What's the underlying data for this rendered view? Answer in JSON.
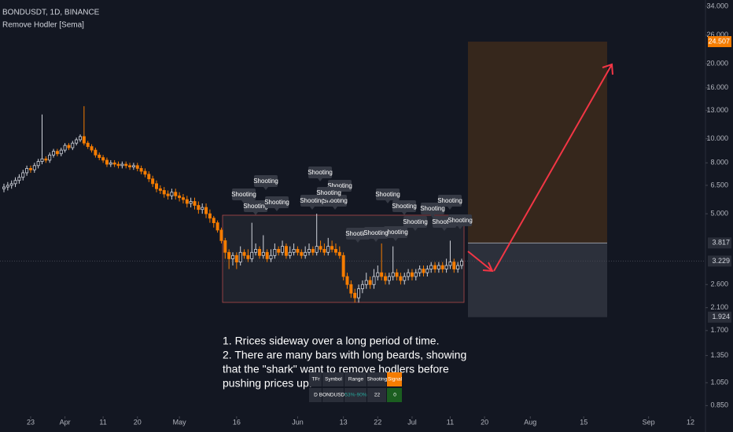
{
  "header": {
    "symbol": "BONDUSDT, 1D, BINANCE",
    "indicator": "Remove Hodler [Sema]"
  },
  "chart_data": {
    "type": "candlestick",
    "log_scale": true,
    "up_color": "#d1d4dc",
    "down_color": "#f57c00",
    "ylim": [
      0.77,
      36
    ],
    "yticks": [
      {
        "value": 34,
        "label": "34.000"
      },
      {
        "value": 26,
        "label": "26.000"
      },
      {
        "value": 20,
        "label": "20.000"
      },
      {
        "value": 16,
        "label": "16.000"
      },
      {
        "value": 13,
        "label": "13.000"
      },
      {
        "value": 10,
        "label": "10.000"
      },
      {
        "value": 8,
        "label": "8.000"
      },
      {
        "value": 6.5,
        "label": "6.500"
      },
      {
        "value": 5,
        "label": "5.000"
      },
      {
        "value": 2.6,
        "label": "2.600"
      },
      {
        "value": 2.1,
        "label": "2.100"
      },
      {
        "value": 1.7,
        "label": "1.700"
      },
      {
        "value": 1.35,
        "label": "1.350"
      },
      {
        "value": 1.05,
        "label": "1.050"
      },
      {
        "value": 0.85,
        "label": "0.850"
      }
    ],
    "xlim": [
      0,
      190
    ],
    "xticks": [
      {
        "value": 7,
        "label": "23"
      },
      {
        "value": 16,
        "label": "Apr"
      },
      {
        "value": 26,
        "label": "11"
      },
      {
        "value": 35,
        "label": "20"
      },
      {
        "value": 46,
        "label": "May"
      },
      {
        "value": 61,
        "label": "16"
      },
      {
        "value": 77,
        "label": "Jun"
      },
      {
        "value": 89,
        "label": "13"
      },
      {
        "value": 98,
        "label": "22"
      },
      {
        "value": 107,
        "label": "Jul"
      },
      {
        "value": 117,
        "label": "11"
      },
      {
        "value": 126,
        "label": "20"
      },
      {
        "value": 138,
        "label": "Aug"
      },
      {
        "value": 152,
        "label": "15"
      },
      {
        "value": 169,
        "label": "Sep"
      },
      {
        "value": 180,
        "label": "12"
      }
    ],
    "open": [
      6.3,
      6.4,
      6.5,
      6.6,
      6.8,
      7.0,
      7.3,
      7.6,
      7.5,
      7.8,
      8.1,
      8.3,
      8.2,
      8.6,
      8.9,
      8.7,
      9.0,
      9.4,
      9.2,
      9.6,
      9.9,
      10.2,
      9.6,
      9.3,
      9.0,
      8.6,
      8.4,
      8.2,
      7.9,
      8.0,
      7.9,
      7.8,
      7.9,
      7.8,
      7.7,
      7.8,
      7.6,
      7.4,
      7.2,
      6.9,
      6.6,
      6.3,
      6.2,
      6.0,
      5.9,
      6.1,
      5.9,
      5.8,
      5.7,
      5.5,
      5.6,
      5.4,
      5.2,
      5.3,
      5.0,
      4.8,
      4.6,
      4.3,
      3.9,
      3.5,
      3.3,
      3.4,
      3.2,
      3.5,
      3.4,
      3.3,
      3.5,
      3.6,
      3.4,
      3.5,
      3.3,
      3.4,
      3.6,
      3.5,
      3.7,
      3.4,
      3.5,
      3.6,
      3.5,
      3.4,
      3.5,
      3.6,
      3.5,
      3.7,
      3.6,
      3.5,
      3.7,
      3.6,
      3.5,
      3.4,
      2.8,
      2.6,
      2.4,
      2.3,
      2.5,
      2.6,
      2.7,
      2.6,
      2.8,
      2.9,
      2.8,
      2.7,
      2.8,
      2.9,
      2.8,
      2.7,
      2.8,
      2.9,
      2.8,
      2.9,
      3.0,
      2.9,
      3.0,
      3.1,
      3.0,
      3.1,
      3.0,
      3.1,
      3.2,
      3.0,
      3.1
    ],
    "high": [
      6.6,
      6.7,
      6.8,
      7.0,
      7.2,
      7.5,
      7.8,
      7.8,
      8.0,
      8.3,
      12.5,
      8.5,
      8.8,
      9.1,
      9.1,
      9.2,
      9.6,
      9.6,
      9.8,
      10.1,
      10.4,
      13.5,
      9.8,
      9.5,
      9.2,
      8.8,
      8.6,
      8.4,
      8.2,
      8.2,
      8.1,
      8.1,
      8.1,
      8.0,
      8.0,
      8.0,
      7.8,
      7.6,
      7.4,
      7.1,
      6.8,
      6.5,
      6.4,
      6.2,
      6.3,
      6.3,
      6.1,
      6.0,
      5.9,
      5.8,
      5.8,
      5.6,
      5.5,
      5.5,
      5.2,
      4.9,
      4.7,
      4.4,
      4.0,
      3.6,
      3.5,
      3.5,
      3.7,
      3.6,
      3.6,
      4.6,
      3.8,
      3.7,
      4.1,
      3.6,
      3.6,
      3.8,
      3.7,
      3.9,
      3.8,
      3.7,
      3.8,
      3.7,
      3.6,
      3.7,
      3.8,
      3.7,
      5.0,
      3.9,
      3.8,
      4.0,
      3.9,
      3.8,
      3.7,
      3.5,
      2.9,
      2.7,
      2.5,
      2.6,
      2.7,
      2.9,
      2.8,
      3.0,
      3.1,
      3.8,
      2.9,
      2.9,
      3.7,
      3.0,
      2.9,
      2.9,
      3.0,
      3.0,
      3.0,
      3.1,
      3.1,
      3.1,
      3.2,
      3.2,
      3.2,
      3.2,
      3.3,
      3.9,
      3.3,
      3.2,
      3.3
    ],
    "low": [
      6.1,
      6.2,
      6.3,
      6.4,
      6.6,
      6.8,
      7.1,
      7.3,
      7.3,
      7.6,
      7.9,
      8.0,
      8.0,
      8.4,
      8.5,
      8.5,
      8.8,
      9.0,
      9.0,
      9.4,
      9.7,
      9.4,
      9.1,
      8.8,
      8.4,
      8.2,
      8.0,
      7.7,
      7.7,
      7.7,
      7.6,
      7.6,
      7.6,
      7.5,
      7.5,
      7.4,
      7.2,
      7.0,
      6.7,
      6.4,
      6.1,
      6.0,
      5.8,
      5.7,
      5.7,
      5.7,
      5.6,
      5.5,
      5.3,
      5.3,
      5.2,
      5.0,
      5.0,
      4.8,
      4.6,
      4.4,
      4.2,
      3.8,
      3.3,
      3.0,
      3.1,
      3.0,
      3.1,
      3.3,
      3.2,
      3.2,
      3.4,
      3.3,
      3.3,
      3.2,
      3.2,
      3.3,
      3.4,
      3.4,
      3.3,
      3.3,
      3.4,
      3.4,
      3.3,
      3.3,
      3.4,
      3.4,
      3.4,
      3.5,
      3.4,
      3.4,
      3.5,
      3.4,
      3.3,
      2.7,
      2.5,
      2.3,
      2.2,
      2.2,
      2.4,
      2.5,
      2.5,
      2.5,
      2.7,
      2.7,
      2.6,
      2.6,
      2.7,
      2.7,
      2.6,
      2.6,
      2.7,
      2.7,
      2.7,
      2.8,
      2.8,
      2.8,
      2.9,
      2.9,
      2.9,
      2.9,
      2.9,
      3.0,
      2.9,
      2.9,
      3.0
    ],
    "close": [
      6.4,
      6.5,
      6.6,
      6.8,
      7.0,
      7.3,
      7.6,
      7.5,
      7.8,
      8.1,
      8.3,
      8.2,
      8.6,
      8.9,
      8.7,
      9.0,
      9.4,
      9.2,
      9.6,
      9.9,
      10.2,
      9.6,
      9.3,
      9.0,
      8.6,
      8.4,
      8.2,
      7.9,
      8.0,
      7.9,
      7.8,
      7.9,
      7.8,
      7.7,
      7.8,
      7.6,
      7.4,
      7.2,
      6.9,
      6.6,
      6.3,
      6.2,
      6.0,
      5.9,
      6.1,
      5.9,
      5.8,
      5.7,
      5.5,
      5.6,
      5.4,
      5.2,
      5.3,
      5.0,
      4.8,
      4.6,
      4.3,
      3.9,
      3.5,
      3.3,
      3.4,
      3.2,
      3.5,
      3.4,
      3.3,
      3.5,
      3.6,
      3.4,
      3.5,
      3.3,
      3.4,
      3.6,
      3.5,
      3.7,
      3.4,
      3.5,
      3.6,
      3.5,
      3.4,
      3.5,
      3.6,
      3.5,
      3.7,
      3.6,
      3.5,
      3.7,
      3.6,
      3.5,
      3.4,
      2.8,
      2.6,
      2.4,
      2.3,
      2.5,
      2.6,
      2.7,
      2.6,
      2.8,
      2.9,
      2.8,
      2.7,
      2.8,
      2.9,
      2.8,
      2.7,
      2.8,
      2.9,
      2.8,
      2.9,
      3.0,
      2.9,
      3.0,
      3.1,
      3.0,
      3.1,
      3.0,
      3.1,
      3.2,
      3.0,
      3.1,
      3.23
    ],
    "last_price": {
      "value": 3.229,
      "label": "3.229"
    },
    "position": {
      "target": {
        "value": 24.507,
        "label": "24.507"
      },
      "entry": {
        "value": 3.817,
        "label": "3.817"
      },
      "stop": {
        "value": 1.924,
        "label": "1.924"
      }
    },
    "shooting_labels": [
      "Shooting",
      "Shooting",
      "Shooting",
      "Shooting",
      "Shooting",
      "Shooting",
      "Shooting",
      "Shooting",
      "Shooting",
      "Shooting",
      "Shooting",
      "Shooting",
      "Shooting",
      "Shooting",
      "Shooting",
      "Shooting",
      "Shooting",
      "Shooting",
      "Shooting"
    ]
  },
  "notes": [
    "1. Rrices sideway over a long period of time.",
    "2. There are many bars with long beards, showing",
    "that the \"shark\" want to remove hodlers before",
    "pushing prices up."
  ],
  "table": {
    "header": [
      "TFr",
      "Symbol",
      "Range",
      "Shooting",
      "Signal"
    ],
    "rows": [
      [
        "D",
        "BONDUSDT",
        "53%-90%",
        "22",
        "0"
      ]
    ]
  }
}
